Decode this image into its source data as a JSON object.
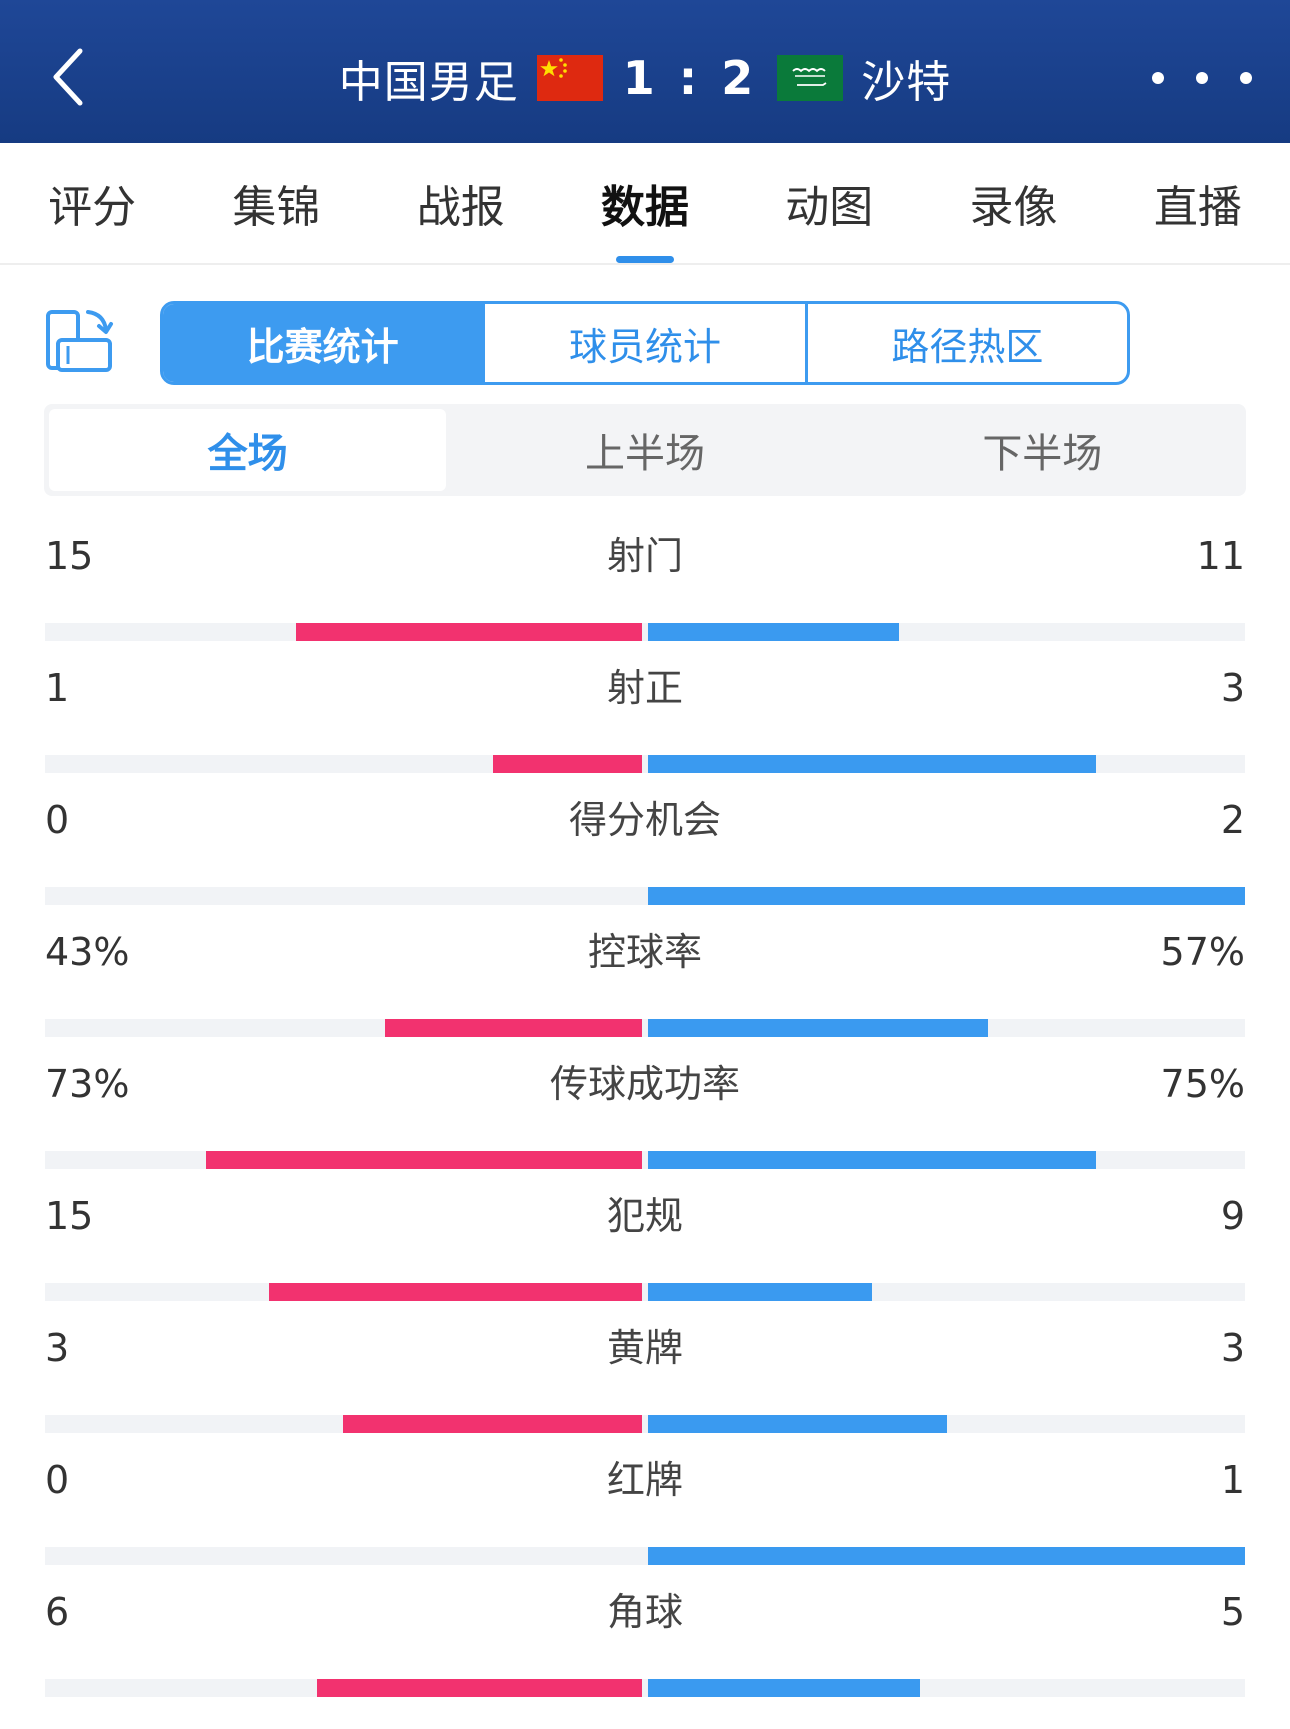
{
  "header": {
    "home_team": "中国男足",
    "away_team": "沙特",
    "score": "1 : 2"
  },
  "icons": {
    "back": "chevron-left-icon",
    "more": "more-dots-icon",
    "rotate": "rotate-screen-icon",
    "home_flag": "china-flag-icon",
    "away_flag": "saudi-flag-icon"
  },
  "tabs": [
    {
      "label": "评分"
    },
    {
      "label": "集锦"
    },
    {
      "label": "战报"
    },
    {
      "label": "数据",
      "active": true
    },
    {
      "label": "动图"
    },
    {
      "label": "录像"
    },
    {
      "label": "直播"
    }
  ],
  "segments": [
    {
      "label": "比赛统计",
      "active": true
    },
    {
      "label": "球员统计"
    },
    {
      "label": "路径热区"
    }
  ],
  "periods": [
    {
      "label": "全场",
      "active": true
    },
    {
      "label": "上半场"
    },
    {
      "label": "下半场"
    }
  ],
  "colors": {
    "header_bg": "#1f4797",
    "accent": "#2f8fea",
    "home_bar": "#f2326f",
    "away_bar": "#3a9af0",
    "track": "#f1f3f6"
  },
  "stats": [
    {
      "label": "射门",
      "home": "15",
      "away": "11",
      "home_frac": 0.58,
      "away_frac": 0.42
    },
    {
      "label": "射正",
      "home": "1",
      "away": "3",
      "home_frac": 0.25,
      "away_frac": 0.75
    },
    {
      "label": "得分机会",
      "home": "0",
      "away": "2",
      "home_frac": 0.0,
      "away_frac": 1.0
    },
    {
      "label": "控球率",
      "home": "43%",
      "away": "57%",
      "home_frac": 0.43,
      "away_frac": 0.57
    },
    {
      "label": "传球成功率",
      "home": "73%",
      "away": "75%",
      "home_frac": 0.73,
      "away_frac": 0.75
    },
    {
      "label": "犯规",
      "home": "15",
      "away": "9",
      "home_frac": 0.625,
      "away_frac": 0.375
    },
    {
      "label": "黄牌",
      "home": "3",
      "away": "3",
      "home_frac": 0.5,
      "away_frac": 0.5
    },
    {
      "label": "红牌",
      "home": "0",
      "away": "1",
      "home_frac": 0.0,
      "away_frac": 1.0
    },
    {
      "label": "角球",
      "home": "6",
      "away": "5",
      "home_frac": 0.545,
      "away_frac": 0.455
    }
  ]
}
